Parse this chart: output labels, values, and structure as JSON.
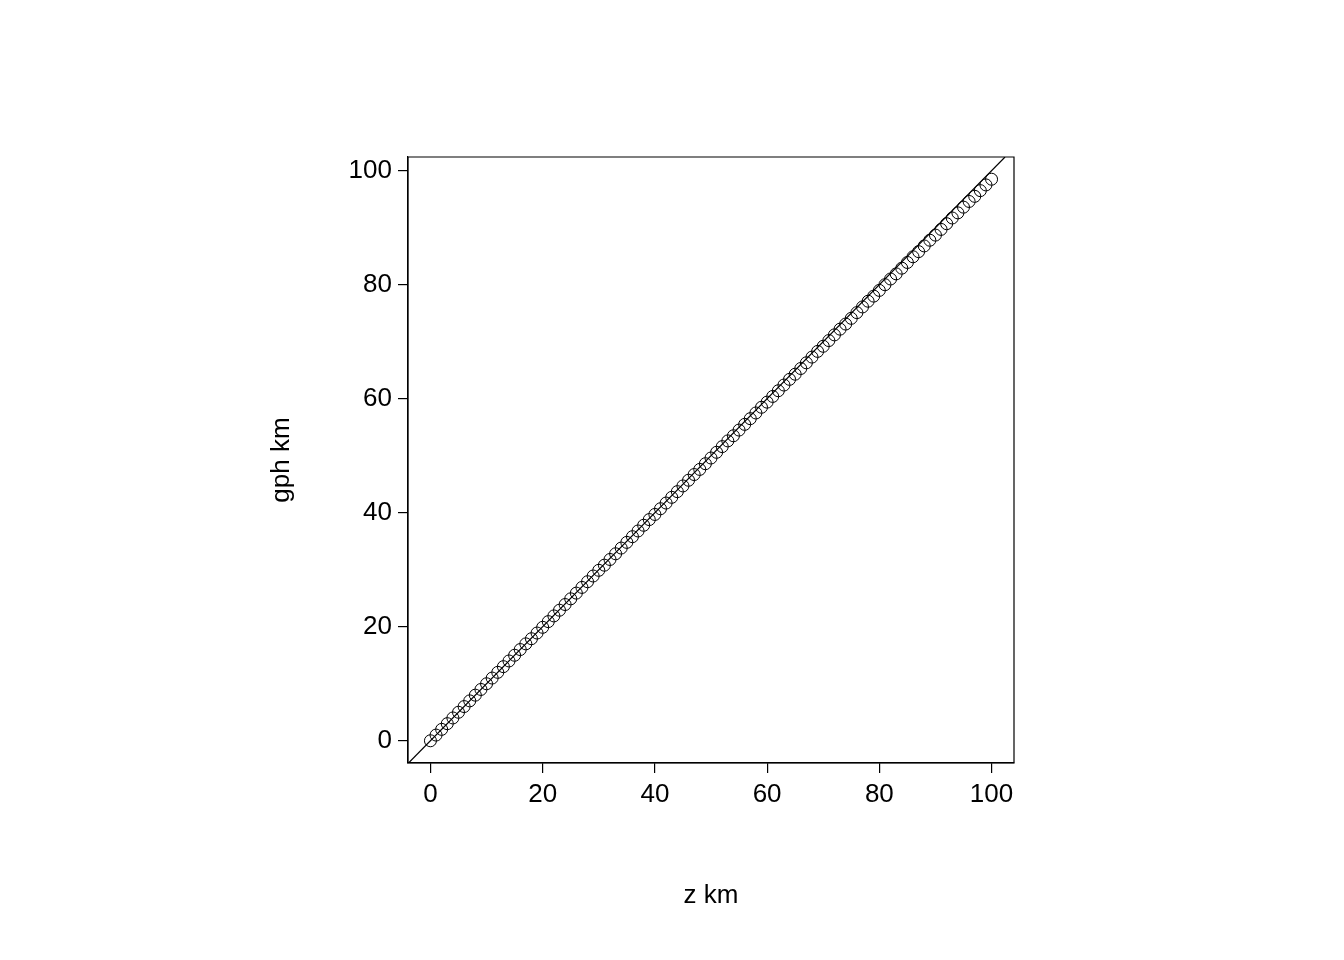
{
  "chart_data": {
    "type": "scatter",
    "xlabel": "z km",
    "ylabel": "gph km",
    "xlim": [
      -4,
      104
    ],
    "ylim": [
      -3.9,
      102.4
    ],
    "xticks": [
      0,
      20,
      40,
      60,
      80,
      100
    ],
    "yticks": [
      0,
      20,
      40,
      60,
      80,
      100
    ],
    "grid": false,
    "legend": false,
    "series": [
      {
        "type": "scatter",
        "marker": "circle",
        "color": "#000000",
        "x": [
          0,
          1,
          2,
          3,
          4,
          5,
          6,
          7,
          8,
          9,
          10,
          11,
          12,
          13,
          14,
          15,
          16,
          17,
          18,
          19,
          20,
          21,
          22,
          23,
          24,
          25,
          26,
          27,
          28,
          29,
          30,
          31,
          32,
          33,
          34,
          35,
          36,
          37,
          38,
          39,
          40,
          41,
          42,
          43,
          44,
          45,
          46,
          47,
          48,
          49,
          50,
          51,
          52,
          53,
          54,
          55,
          56,
          57,
          58,
          59,
          60,
          61,
          62,
          63,
          64,
          65,
          66,
          67,
          68,
          69,
          70,
          71,
          72,
          73,
          74,
          75,
          76,
          77,
          78,
          79,
          80,
          81,
          82,
          83,
          84,
          85,
          86,
          87,
          88,
          89,
          90,
          91,
          92,
          93,
          94,
          95,
          96,
          97,
          98,
          99,
          100
        ],
        "values": [
          0,
          1,
          2,
          3,
          4,
          5,
          6,
          7,
          8,
          9,
          10,
          11,
          12,
          13,
          14,
          15,
          16,
          17,
          17.9,
          18.9,
          19.9,
          20.9,
          21.9,
          22.9,
          23.9,
          24.9,
          25.9,
          26.9,
          27.9,
          28.9,
          29.9,
          30.8,
          31.8,
          32.8,
          33.8,
          34.8,
          35.8,
          36.8,
          37.8,
          38.8,
          39.7,
          40.7,
          41.7,
          42.7,
          43.7,
          44.7,
          45.7,
          46.7,
          47.6,
          48.6,
          49.6,
          50.6,
          51.6,
          52.6,
          53.5,
          54.5,
          55.5,
          56.5,
          57.5,
          58.5,
          59.4,
          60.4,
          61.4,
          62.4,
          63.4,
          64.3,
          65.3,
          66.3,
          67.3,
          68.3,
          69.2,
          70.2,
          71.2,
          72.2,
          73.1,
          74.1,
          75.1,
          76.1,
          77.1,
          78.0,
          79.0,
          80.0,
          81.0,
          81.9,
          82.9,
          83.9,
          84.9,
          85.8,
          86.8,
          87.8,
          88.7,
          89.7,
          90.7,
          91.7,
          92.6,
          93.6,
          94.6,
          95.5,
          96.5,
          97.5,
          98.5
        ]
      },
      {
        "type": "line",
        "marker": "none",
        "color": "#000000",
        "x": [
          -3.9,
          102.4
        ],
        "values": [
          -3.9,
          102.4
        ]
      }
    ]
  }
}
